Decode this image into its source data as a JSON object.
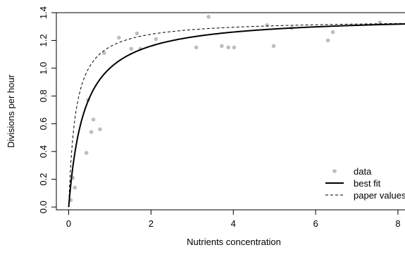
{
  "chart_data": {
    "type": "scatter",
    "title": "",
    "xlabel": "Nutrients concentration",
    "ylabel": "Divisions per hour",
    "xlim": [
      -0.3,
      8.6
    ],
    "ylim": [
      -0.02,
      1.4
    ],
    "xticks": [
      0,
      2,
      4,
      6,
      8
    ],
    "yticks": [
      0.0,
      0.2,
      0.4,
      0.6,
      0.8,
      1.0,
      1.2,
      1.4
    ],
    "xtick_labels": [
      "0",
      "2",
      "4",
      "6",
      "8"
    ],
    "ytick_labels": [
      "0.0",
      "0.2",
      "0.4",
      "0.6",
      "0.8",
      "1.0",
      "1.2",
      "1.4"
    ],
    "grid": false,
    "legend_position": "bottom-right",
    "series": [
      {
        "name": "data",
        "style": "points",
        "color": "#bebebe",
        "x": [
          0.05,
          0.1,
          0.15,
          0.43,
          0.47,
          0.55,
          0.6,
          0.76,
          0.86,
          1.22,
          1.52,
          1.66,
          1.74,
          2.12,
          3.1,
          3.4,
          3.72,
          3.88,
          4.02,
          4.82,
          4.98,
          5.42,
          6.3,
          6.42,
          7.56,
          8.4
        ],
        "y": [
          0.05,
          0.21,
          0.14,
          0.39,
          0.77,
          0.54,
          0.63,
          0.56,
          1.11,
          1.22,
          1.14,
          1.25,
          1.14,
          1.21,
          1.15,
          1.37,
          1.16,
          1.15,
          1.15,
          1.31,
          1.16,
          1.29,
          1.2,
          1.26,
          1.33,
          1.26
        ]
      },
      {
        "name": "best fit",
        "style": "solid",
        "color": "#000000",
        "model": "michaelis-menten",
        "vmax": 1.38,
        "k": 0.38
      },
      {
        "name": "paper values",
        "style": "dashed",
        "color": "#000000",
        "model": "michaelis-menten",
        "vmax": 1.35,
        "k": 0.17
      }
    ]
  }
}
